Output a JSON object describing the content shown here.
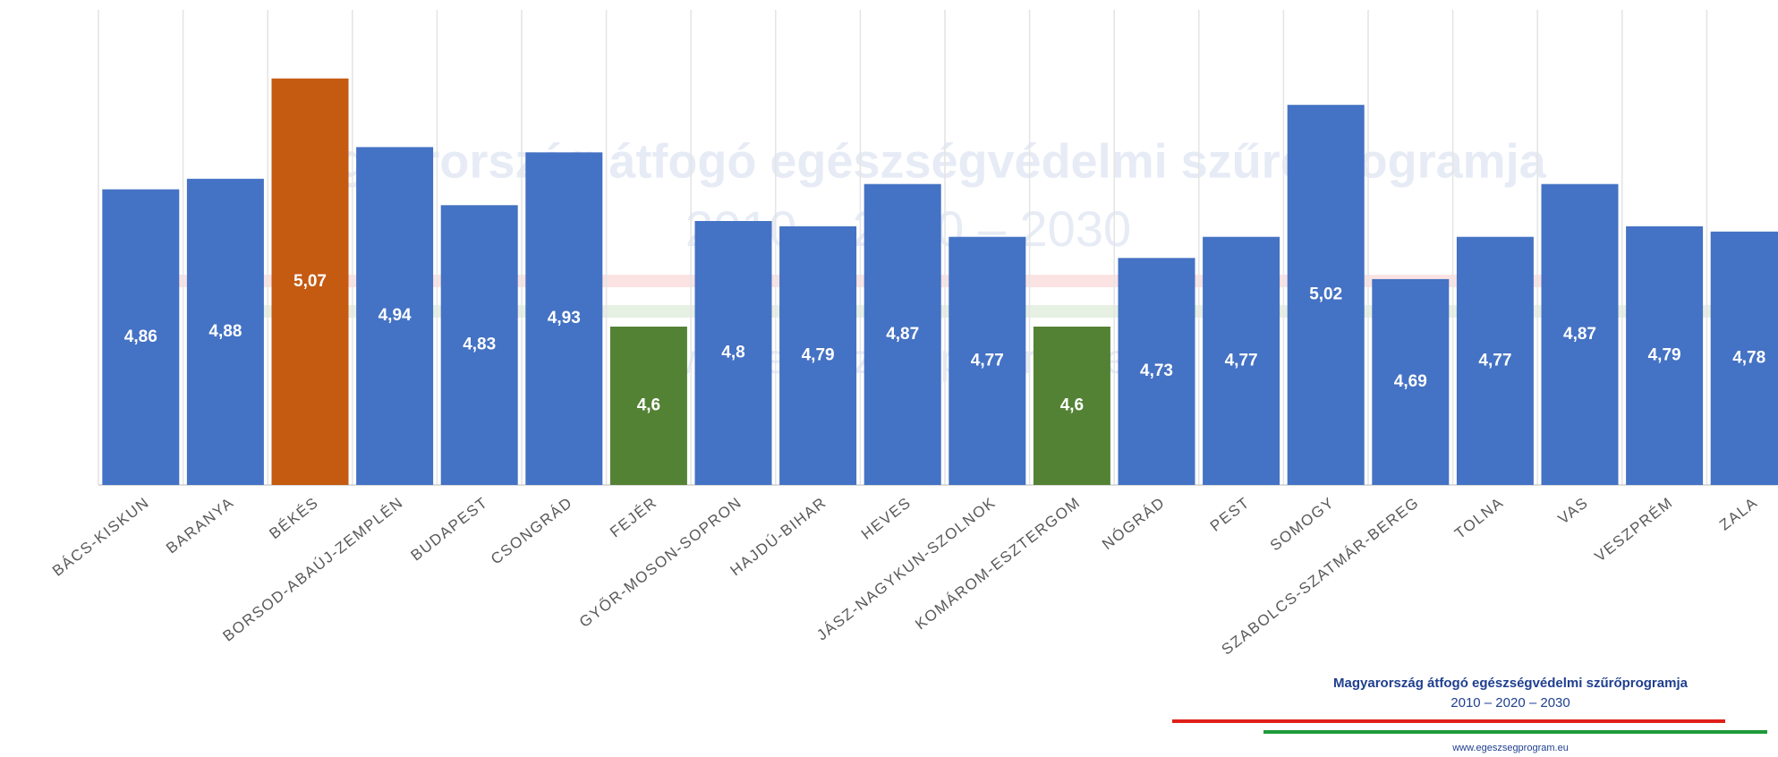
{
  "chart_data": {
    "type": "bar",
    "categories": [
      "BÁCS-KISKUN",
      "BARANYA",
      "BÉKÉS",
      "BORSOD-ABAÚJ-ZEMPLÉN",
      "BUDAPEST",
      "CSONGRÁD",
      "FEJÉR",
      "GYŐR-MOSON-SOPRON",
      "HAJDÚ-BIHAR",
      "HEVES",
      "JÁSZ-NAGYKUN-SZOLNOK",
      "KOMÁROM-ESZTERGOM",
      "NÓGRÁD",
      "PEST",
      "SOMOGY",
      "SZABOLCS-SZATMÁR-BEREG",
      "TOLNA",
      "VAS",
      "VESZPRÉM",
      "ZALA"
    ],
    "values": [
      4.86,
      4.88,
      5.07,
      4.94,
      4.83,
      4.93,
      4.6,
      4.8,
      4.79,
      4.87,
      4.77,
      4.6,
      4.73,
      4.77,
      5.02,
      4.69,
      4.77,
      4.87,
      4.79,
      4.78
    ],
    "value_labels": [
      "4,86",
      "4,88",
      "5,07",
      "4,94",
      "4,83",
      "4,93",
      "4,6",
      "4,8",
      "4,79",
      "4,87",
      "4,77",
      "4,6",
      "4,73",
      "4,77",
      "5,02",
      "4,69",
      "4,77",
      "4,87",
      "4,79",
      "4,78"
    ],
    "colors": [
      "#4472c4",
      "#4472c4",
      "#c55a11",
      "#4472c4",
      "#4472c4",
      "#4472c4",
      "#548235",
      "#4472c4",
      "#4472c4",
      "#4472c4",
      "#4472c4",
      "#548235",
      "#4472c4",
      "#4472c4",
      "#4472c4",
      "#4472c4",
      "#4472c4",
      "#4472c4",
      "#4472c4",
      "#4472c4"
    ],
    "ylim": [
      4.3,
      5.2
    ],
    "annotations": [
      "Magyarország átfogó egészségvédelmi szűrőprogramja",
      "2010 – 2020 – 2030",
      "www.egeszsegprogram.eu"
    ]
  }
}
